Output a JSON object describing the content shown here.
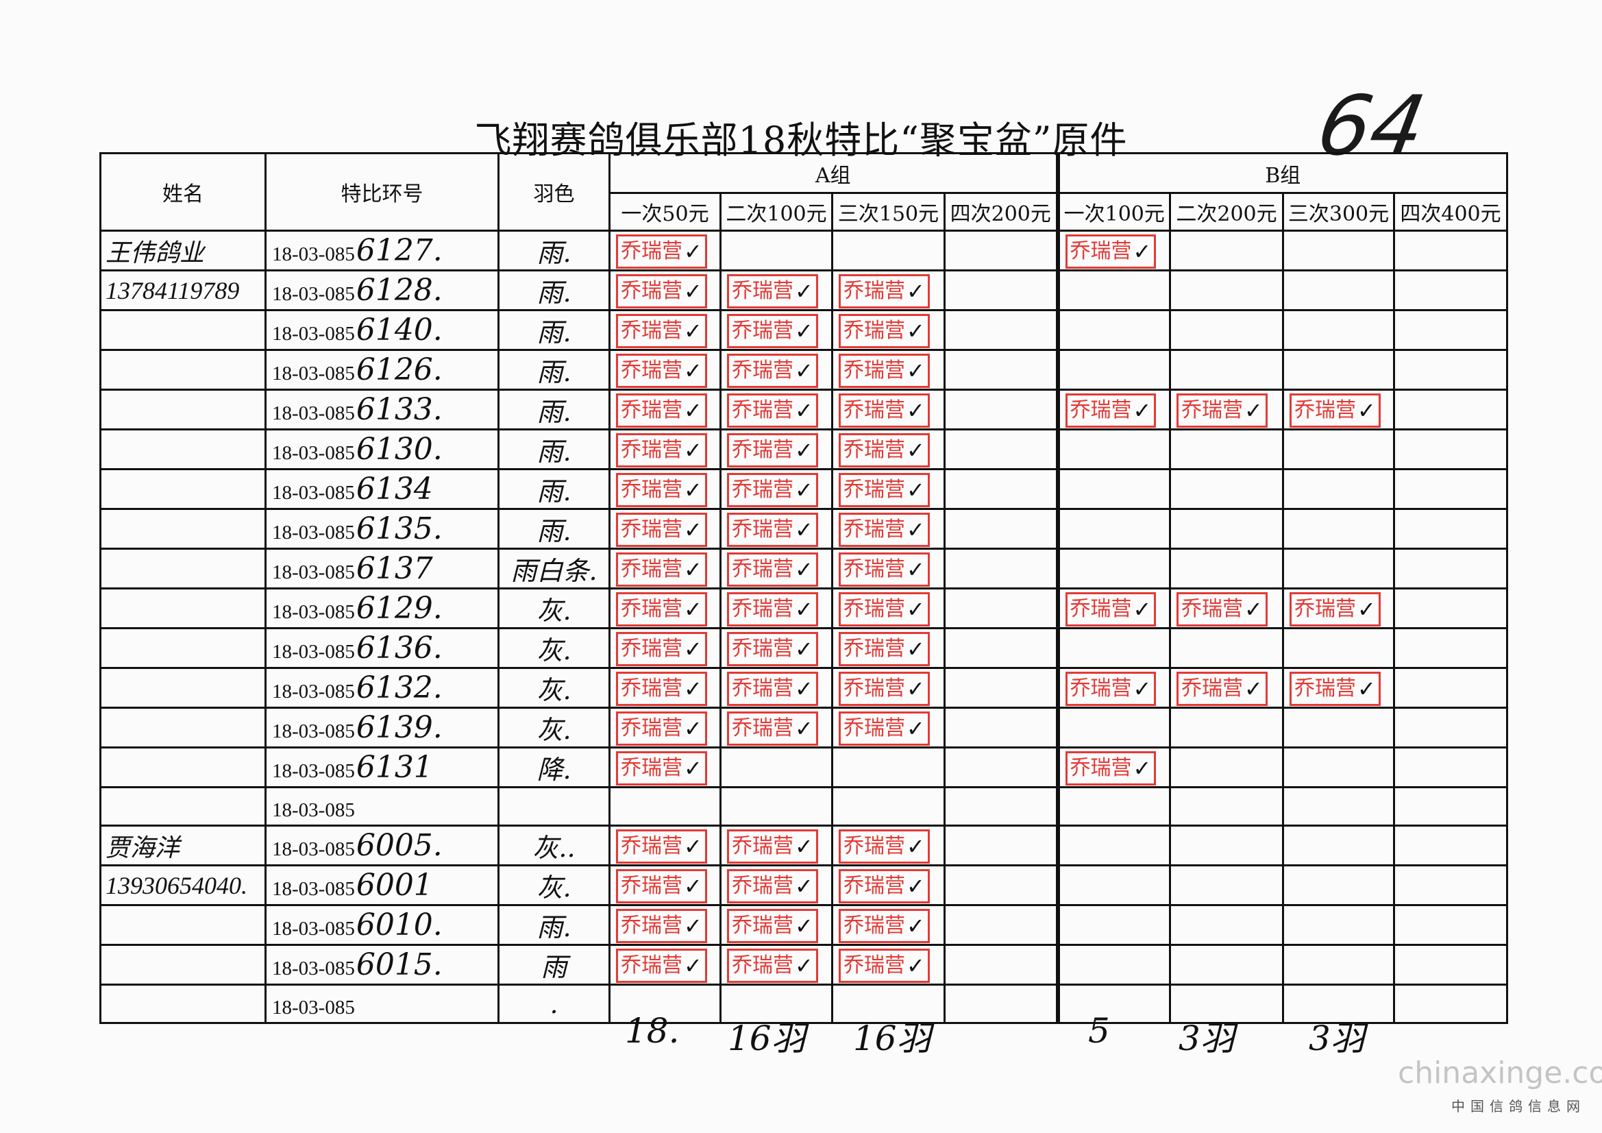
{
  "title": "飞翔赛鸽俱乐部18秋特比“聚宝盆”原件",
  "page_number": "64",
  "stamp_color": "#e33a35",
  "stamp_text": "乔瑞营",
  "headers": {
    "name": "姓名",
    "ring": "特比环号",
    "color": "羽色",
    "group_a": "A组",
    "group_b": "B组",
    "a_cols": [
      "一次50元",
      "二次100元",
      "三次150元",
      "四次200元"
    ],
    "b_cols": [
      "一次100元",
      "二次200元",
      "三次300元",
      "四次400元"
    ]
  },
  "rows": [
    {
      "name": "王伟鸽业",
      "ring_prefix": "18-03-085",
      "ring_suffix": "6127.",
      "color": "雨.",
      "stamps": [
        1,
        0,
        0,
        0,
        1,
        0,
        0,
        0
      ]
    },
    {
      "name": "13784119789",
      "ring_prefix": "18-03-085",
      "ring_suffix": "6128.",
      "color": "雨.",
      "stamps": [
        1,
        1,
        1,
        0,
        0,
        0,
        0,
        0
      ]
    },
    {
      "name": "",
      "ring_prefix": "18-03-085",
      "ring_suffix": "6140.",
      "color": "雨.",
      "stamps": [
        1,
        1,
        1,
        0,
        0,
        0,
        0,
        0
      ]
    },
    {
      "name": "",
      "ring_prefix": "18-03-085",
      "ring_suffix": "6126.",
      "color": "雨.",
      "stamps": [
        1,
        1,
        1,
        0,
        0,
        0,
        0,
        0
      ]
    },
    {
      "name": "",
      "ring_prefix": "18-03-085",
      "ring_suffix": "6133.",
      "color": "雨.",
      "stamps": [
        1,
        1,
        1,
        0,
        1,
        1,
        1,
        0
      ]
    },
    {
      "name": "",
      "ring_prefix": "18-03-085",
      "ring_suffix": "6130.",
      "color": "雨.",
      "stamps": [
        1,
        1,
        1,
        0,
        0,
        0,
        0,
        0
      ]
    },
    {
      "name": "",
      "ring_prefix": "18-03-085",
      "ring_suffix": "6134",
      "color": "雨.",
      "stamps": [
        1,
        1,
        1,
        0,
        0,
        0,
        0,
        0
      ]
    },
    {
      "name": "",
      "ring_prefix": "18-03-085",
      "ring_suffix": "6135.",
      "color": "雨.",
      "stamps": [
        1,
        1,
        1,
        0,
        0,
        0,
        0,
        0
      ]
    },
    {
      "name": "",
      "ring_prefix": "18-03-085",
      "ring_suffix": "6137",
      "color": "雨白条.",
      "stamps": [
        1,
        1,
        1,
        0,
        0,
        0,
        0,
        0
      ]
    },
    {
      "name": "",
      "ring_prefix": "18-03-085",
      "ring_suffix": "6129.",
      "color": "灰.",
      "stamps": [
        1,
        1,
        1,
        0,
        1,
        1,
        1,
        0
      ]
    },
    {
      "name": "",
      "ring_prefix": "18-03-085",
      "ring_suffix": "6136.",
      "color": "灰.",
      "stamps": [
        1,
        1,
        1,
        0,
        0,
        0,
        0,
        0
      ]
    },
    {
      "name": "",
      "ring_prefix": "18-03-085",
      "ring_suffix": "6132.",
      "color": "灰.",
      "stamps": [
        1,
        1,
        1,
        0,
        1,
        1,
        1,
        0
      ]
    },
    {
      "name": "",
      "ring_prefix": "18-03-085",
      "ring_suffix": "6139.",
      "color": "灰.",
      "stamps": [
        1,
        1,
        1,
        0,
        0,
        0,
        0,
        0
      ]
    },
    {
      "name": "",
      "ring_prefix": "18-03-085",
      "ring_suffix": "6131",
      "color": "降.",
      "stamps": [
        1,
        0,
        0,
        0,
        1,
        0,
        0,
        0
      ]
    },
    {
      "name": "",
      "ring_prefix": "18-03-085",
      "ring_suffix": "",
      "color": "",
      "stamps": [
        0,
        0,
        0,
        0,
        0,
        0,
        0,
        0
      ]
    },
    {
      "name": "贾海洋",
      "ring_prefix": "18-03-085",
      "ring_suffix": "6005.",
      "color": "灰..",
      "stamps": [
        1,
        1,
        1,
        0,
        0,
        0,
        0,
        0
      ]
    },
    {
      "name": "13930654040.",
      "ring_prefix": "18-03-085",
      "ring_suffix": "6001",
      "color": "灰.",
      "stamps": [
        1,
        1,
        1,
        0,
        0,
        0,
        0,
        0
      ]
    },
    {
      "name": "",
      "ring_prefix": "18-03-085",
      "ring_suffix": "6010.",
      "color": "雨.",
      "stamps": [
        1,
        1,
        1,
        0,
        0,
        0,
        0,
        0
      ]
    },
    {
      "name": "",
      "ring_prefix": "18-03-085",
      "ring_suffix": "6015.",
      "color": "雨",
      "stamps": [
        1,
        1,
        1,
        0,
        0,
        0,
        0,
        0
      ]
    },
    {
      "name": "",
      "ring_prefix": "18-03-085",
      "ring_suffix": "",
      "color": ".",
      "stamps": [
        0,
        0,
        0,
        0,
        0,
        0,
        0,
        0
      ]
    }
  ],
  "totals": [
    "18.",
    "16羽",
    "16羽",
    "5",
    "3羽",
    "3羽"
  ],
  "watermark": {
    "site": "chinaxinge.com",
    "subtitle": "中国信鸽信息网"
  }
}
